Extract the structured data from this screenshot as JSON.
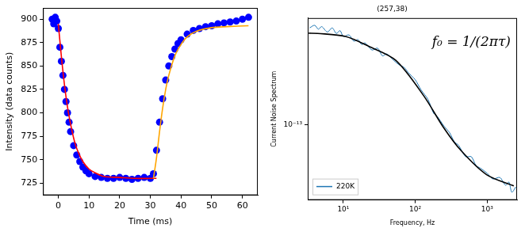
{
  "chart_data": [
    {
      "type": "scatter",
      "x_label": "Time (ms)",
      "y_label": "Intensity (data counts)",
      "xlim": [
        -5,
        65
      ],
      "xticks": [
        0,
        10,
        20,
        30,
        40,
        50,
        60
      ],
      "ylim": [
        712,
        912
      ],
      "yticks": [
        725,
        750,
        775,
        800,
        825,
        850,
        875,
        900
      ],
      "grid": false,
      "series": [
        {
          "color": "#0000ff",
          "marker": "circle",
          "x": [
            -2,
            -1.5,
            -1,
            -0.5,
            0,
            0.5,
            1,
            1.5,
            2,
            2.5,
            3,
            3.5,
            4,
            5,
            6,
            7,
            8,
            9,
            10,
            12,
            14,
            16,
            18,
            20,
            22,
            24,
            26,
            28,
            30,
            31,
            32,
            33,
            34,
            35,
            36,
            37,
            38,
            39,
            40,
            42,
            44,
            46,
            48,
            50,
            52,
            54,
            56,
            58,
            60,
            62
          ],
          "values": [
            900,
            895,
            902,
            898,
            890,
            870,
            855,
            840,
            825,
            812,
            800,
            790,
            780,
            765,
            755,
            748,
            742,
            738,
            735,
            732,
            731,
            730,
            730,
            731,
            730,
            729,
            730,
            731,
            730,
            735,
            760,
            790,
            815,
            835,
            850,
            860,
            868,
            874,
            878,
            884,
            888,
            890,
            892,
            893,
            895,
            896,
            897,
            898,
            900,
            902
          ]
        },
        {
          "type": "line",
          "color": "#ff0000",
          "line_style": "solid",
          "x": [
            0,
            1,
            2,
            3,
            4,
            5,
            6,
            8,
            10,
            12,
            15,
            20,
            25,
            30,
            32
          ],
          "values": [
            895,
            860,
            830,
            806,
            788,
            773,
            762,
            748,
            740,
            736,
            732,
            731,
            730,
            730,
            730
          ]
        },
        {
          "type": "line",
          "color": "#ffa500",
          "line_style": "solid",
          "x": [
            31,
            32,
            33,
            34,
            35,
            36,
            38,
            40,
            42,
            45,
            50,
            55,
            62
          ],
          "values": [
            730,
            752,
            780,
            805,
            825,
            840,
            861,
            873,
            881,
            887,
            891,
            892,
            893
          ]
        }
      ]
    },
    {
      "type": "line",
      "title": "(257,38)",
      "x_label": "Frequency, Hz",
      "y_label": "Current Noise Spectrum",
      "log": true,
      "grid": false,
      "legend": "lower left",
      "annotation": "f₀ = 1/(2πτ)",
      "xlim": [
        3.2,
        2600
      ],
      "xticks": [
        {
          "value": 10,
          "label": "10¹"
        },
        {
          "value": 100,
          "label": "10²"
        },
        {
          "value": 1000,
          "label": "10³"
        }
      ],
      "ylim": [
        3e-14,
        5.5e-13
      ],
      "yticks": [
        {
          "value": 1e-13,
          "label": "10⁻¹³"
        }
      ],
      "series": [
        {
          "name": "220K",
          "color": "#1f77b4",
          "line_style": "solid",
          "x": [
            3.4,
            4,
            4.5,
            5,
            6,
            7,
            8,
            9,
            10,
            12,
            14,
            16,
            18,
            20,
            25,
            30,
            35,
            40,
            50,
            60,
            70,
            80,
            100,
            120,
            150,
            180,
            200,
            250,
            300,
            350,
            400,
            500,
            600,
            700,
            800,
            1000,
            1200,
            1500,
            1800,
            2000,
            2200,
            2500
          ],
          "values": [
            4.7e-13,
            4.9e-13,
            4.6e-13,
            4.8e-13,
            4.4e-13,
            4.7e-13,
            4.3e-13,
            4.5e-13,
            4.1e-13,
            4.2e-13,
            3.8e-13,
            3.9e-13,
            3.6e-13,
            3.7e-13,
            3.3e-13,
            3.4e-13,
            3e-13,
            3.1e-13,
            2.8e-13,
            2.6e-13,
            2.5e-13,
            2.3e-13,
            2.05e-13,
            1.75e-13,
            1.5e-13,
            1.2e-13,
            1.15e-13,
            9.8e-14,
            8.8e-14,
            7.6e-14,
            7.2e-14,
            6e-14,
            6e-14,
            5.2e-14,
            5e-14,
            4.6e-14,
            4.2e-14,
            4.3e-14,
            3.8e-14,
            4e-14,
            3.4e-14,
            3.7e-14
          ]
        },
        {
          "color": "#000000",
          "line_style": "solid",
          "x": [
            3.3,
            4.4,
            10.7,
            22.6,
            53.5,
            132,
            246,
            434,
            980,
            2340
          ],
          "values": [
            4.32e-13,
            4.3e-13,
            4.1e-13,
            3.5e-13,
            2.8e-13,
            1.58e-13,
            9.6e-14,
            6.6e-14,
            4.5e-14,
            3.76e-14
          ]
        }
      ]
    }
  ]
}
